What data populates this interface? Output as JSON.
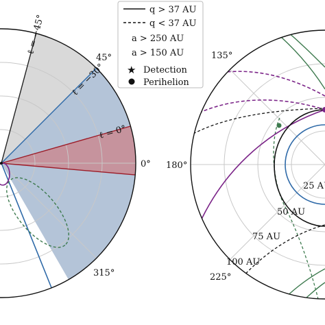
{
  "chart_data": [
    {
      "type": "polar",
      "panel": "left",
      "grid": true,
      "angle_tick_labels": [
        "45°",
        "0°",
        "315°"
      ],
      "wedges": [
        {
          "name": "ℓ = −45°",
          "range_deg": [
            -45,
            75
          ],
          "fill": "#d9d9d9",
          "edge_color": "#222222",
          "label_angle_deg": 75
        },
        {
          "name": "ℓ = −30°",
          "range_deg": [
            -60,
            45
          ],
          "fill": "#b4c4d8",
          "edge_color": "#2f6aa8",
          "label_angle_deg": 45
        },
        {
          "name": "ℓ = 0°",
          "range_deg": [
            -5,
            16
          ],
          "fill": "#c98b93",
          "edge_color": "#9c1c28",
          "label_angle_deg": 16
        }
      ],
      "orbits": [
        {
          "category": "a > 250 AU",
          "perihelion_type": "q < 37 AU",
          "color": "#3d7a4e",
          "style": "dashed"
        },
        {
          "category": "a > 150 AU",
          "perihelion_type": "q > 37 AU",
          "color": "#7b2488",
          "style": "solid"
        }
      ]
    },
    {
      "type": "polar",
      "panel": "right",
      "grid": true,
      "angle_tick_labels": [
        "135°",
        "180°",
        "225°"
      ],
      "radial_tick_labels": [
        "25 AU",
        "50 AU",
        "75 AU",
        "100 AU"
      ],
      "radial_ticks_au": [
        25,
        50,
        75,
        100
      ],
      "orbits": [
        {
          "category": "a > 150 AU",
          "perihelion_type": "q > 37 AU",
          "color": "#7b2488",
          "style": "solid"
        },
        {
          "category": "a > 150 AU",
          "perihelion_type": "q < 37 AU",
          "color": "#7b2488",
          "style": "dashed"
        },
        {
          "category": "a > 250 AU",
          "perihelion_type": "q > 37 AU",
          "color": "#3d7a4e",
          "style": "solid"
        },
        {
          "category": "a > 250 AU",
          "perihelion_type": "q < 37 AU",
          "color": "#3d7a4e",
          "style": "dashed"
        },
        {
          "category": "other",
          "perihelion_type": "q > 37 AU",
          "color": "#111111",
          "style": "solid"
        },
        {
          "category": "other",
          "perihelion_type": "q < 37 AU",
          "color": "#111111",
          "style": "dashed"
        }
      ],
      "reference_circle": {
        "color": "#2f6aa8"
      }
    }
  ],
  "legend": {
    "placement": "top-center",
    "entries": [
      {
        "label": "q > 37 AU",
        "marker": "line-solid",
        "color": "#111111"
      },
      {
        "label": "q < 37 AU",
        "marker": "line-dashed",
        "color": "#111111"
      },
      {
        "label": "a > 250 AU",
        "marker": "text",
        "color": "#3d7a4e"
      },
      {
        "label": "a > 150 AU",
        "marker": "text",
        "color": "#7b2488"
      },
      {
        "label": "Detection",
        "marker": "star",
        "color": "#111111"
      },
      {
        "label": "Perihelion",
        "marker": "dot",
        "color": "#111111"
      }
    ]
  },
  "colors": {
    "grid": "#c8c8c8",
    "axis": "#111111",
    "radial_label": "#8b1c1c",
    "green": "#3d7a4e",
    "purple": "#7b2488",
    "blue": "#2f6aa8",
    "red": "#9c1c28"
  }
}
